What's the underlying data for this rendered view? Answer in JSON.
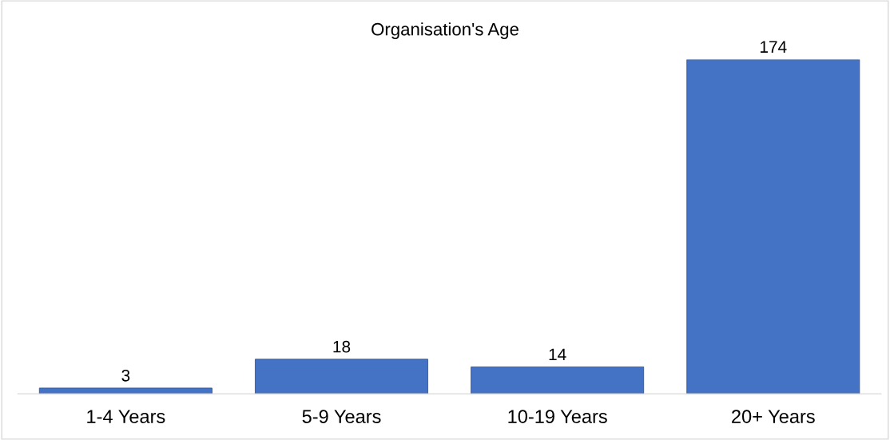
{
  "chart_data": {
    "type": "bar",
    "title": "Organisation's Age",
    "categories": [
      "1-4 Years",
      "5-9 Years",
      "10-19 Years",
      "20+ Years"
    ],
    "values": [
      3,
      18,
      14,
      174
    ],
    "color": "#4472c4",
    "data_labels": true,
    "grid": false,
    "legend": false
  }
}
